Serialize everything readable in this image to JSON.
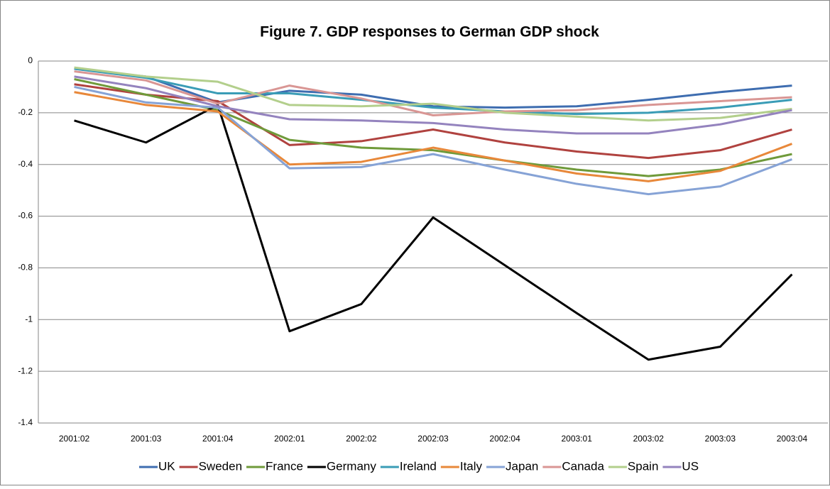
{
  "chart_data": {
    "type": "line",
    "title": "Figure 7. GDP responses to German GDP shock",
    "categories": [
      "2001:02",
      "2001:03",
      "2001:04",
      "2002:01",
      "2002:02",
      "2002:03",
      "2002:04",
      "2003:01",
      "2003:02",
      "2003:03",
      "2003:04"
    ],
    "series": [
      {
        "name": "UK",
        "color": "#3e6db0",
        "values": [
          -0.03,
          -0.06,
          -0.16,
          -0.115,
          -0.13,
          -0.175,
          -0.18,
          -0.175,
          -0.15,
          -0.12,
          -0.095
        ]
      },
      {
        "name": "Sweden",
        "color": "#b0423f",
        "values": [
          -0.09,
          -0.13,
          -0.155,
          -0.325,
          -0.31,
          -0.265,
          -0.315,
          -0.35,
          -0.375,
          -0.345,
          -0.265
        ]
      },
      {
        "name": "France",
        "color": "#6f9a3a",
        "values": [
          -0.07,
          -0.13,
          -0.19,
          -0.305,
          -0.335,
          -0.345,
          -0.385,
          -0.42,
          -0.445,
          -0.42,
          -0.36
        ]
      },
      {
        "name": "Germany",
        "color": "#000000",
        "values": [
          -0.23,
          -0.315,
          -0.17,
          -1.045,
          -0.94,
          -0.605,
          -0.79,
          -0.975,
          -1.155,
          -1.105,
          -0.825
        ]
      },
      {
        "name": "Ireland",
        "color": "#3a9cb6",
        "values": [
          -0.03,
          -0.065,
          -0.125,
          -0.125,
          -0.15,
          -0.18,
          -0.195,
          -0.205,
          -0.2,
          -0.18,
          -0.15
        ]
      },
      {
        "name": "Italy",
        "color": "#e8883a",
        "values": [
          -0.12,
          -0.17,
          -0.195,
          -0.4,
          -0.39,
          -0.335,
          -0.385,
          -0.435,
          -0.465,
          -0.425,
          -0.32
        ]
      },
      {
        "name": "Japan",
        "color": "#86a3d6",
        "values": [
          -0.1,
          -0.16,
          -0.18,
          -0.415,
          -0.41,
          -0.36,
          -0.42,
          -0.475,
          -0.515,
          -0.485,
          -0.38
        ]
      },
      {
        "name": "Canada",
        "color": "#d99694",
        "values": [
          -0.04,
          -0.075,
          -0.165,
          -0.095,
          -0.145,
          -0.21,
          -0.195,
          -0.19,
          -0.17,
          -0.155,
          -0.14
        ]
      },
      {
        "name": "Spain",
        "color": "#b3cf8c",
        "values": [
          -0.025,
          -0.06,
          -0.08,
          -0.17,
          -0.175,
          -0.165,
          -0.2,
          -0.215,
          -0.23,
          -0.22,
          -0.185
        ]
      },
      {
        "name": "US",
        "color": "#9483be",
        "values": [
          -0.06,
          -0.105,
          -0.175,
          -0.225,
          -0.23,
          -0.24,
          -0.265,
          -0.28,
          -0.28,
          -0.245,
          -0.19
        ]
      }
    ],
    "ylim": [
      -1.4,
      0
    ],
    "yticks": [
      0,
      -0.2,
      -0.4,
      -0.6,
      -0.8,
      -1,
      -1.2,
      -1.4
    ],
    "grid": true,
    "legend": "bottom"
  }
}
